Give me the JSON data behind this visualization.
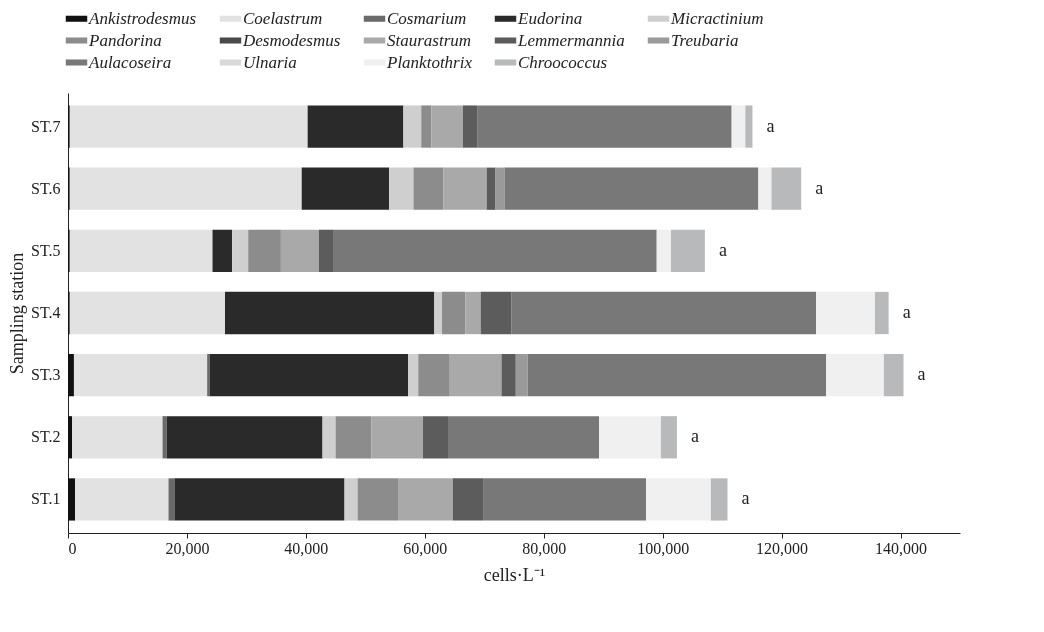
{
  "chart_data": {
    "type": "bar",
    "orientation": "horizontal",
    "stacked": true,
    "xlabel": "cells·L⁻¹",
    "ylabel": "Sampling station",
    "categories": [
      "ST.7",
      "ST.6",
      "ST.5",
      "ST.4",
      "ST.3",
      "ST.2",
      "ST.1"
    ],
    "series": [
      {
        "name": "Ankistrodesmus",
        "color": "#111111",
        "values": [
          300,
          300,
          300,
          300,
          1000,
          700,
          1200
        ]
      },
      {
        "name": "Coelastrum",
        "color": "#e2e2e2",
        "values": [
          40000,
          39000,
          24000,
          26100,
          22400,
          15200,
          15700
        ]
      },
      {
        "name": "Cosmarium",
        "color": "#6a6a6a",
        "values": [
          0,
          0,
          0,
          0,
          400,
          700,
          1000
        ]
      },
      {
        "name": "Eudorina",
        "color": "#2a2a2a",
        "values": [
          16100,
          14700,
          3300,
          35200,
          33400,
          26200,
          28600
        ]
      },
      {
        "name": "Micractinium",
        "color": "#cfcfcf",
        "values": [
          3000,
          4100,
          2700,
          1300,
          1700,
          2200,
          2200
        ]
      },
      {
        "name": "Pandorina",
        "color": "#8c8c8c",
        "values": [
          1700,
          5000,
          5500,
          3900,
          5300,
          6000,
          6800
        ]
      },
      {
        "name": "Desmodesmus",
        "color": "#4a4a4a",
        "values": [
          0,
          0,
          0,
          0,
          0,
          0,
          0
        ]
      },
      {
        "name": "Staurastrum",
        "color": "#a9a9a9",
        "values": [
          5300,
          7300,
          6400,
          2600,
          8700,
          8700,
          9200
        ]
      },
      {
        "name": "Lemmermannia",
        "color": "#5c5c5c",
        "values": [
          2400,
          1500,
          2500,
          5200,
          2400,
          4200,
          5100
        ]
      },
      {
        "name": "Treubaria",
        "color": "#9a9a9a",
        "values": [
          0,
          1500,
          0,
          0,
          2000,
          0,
          0
        ]
      },
      {
        "name": "Aulacoseira",
        "color": "#787878",
        "values": [
          42800,
          42700,
          54300,
          51200,
          50200,
          25400,
          27400
        ]
      },
      {
        "name": "Ulnaria",
        "color": "#d8d8d8",
        "values": [
          0,
          0,
          0,
          0,
          0,
          0,
          0
        ]
      },
      {
        "name": "Planktothrix",
        "color": "#f0f0f0",
        "values": [
          2300,
          2200,
          2400,
          9900,
          9700,
          10400,
          10900
        ]
      },
      {
        "name": "Chroococcus",
        "color": "#b8b9bb",
        "values": [
          1200,
          5000,
          5700,
          2300,
          3300,
          2700,
          2800
        ]
      }
    ],
    "xlim": [
      0,
      150000
    ],
    "xticks": [
      0,
      {
        "value": 20000,
        "label": "20,000"
      },
      {
        "value": 40000,
        "label": "40,000"
      },
      {
        "value": 60000,
        "label": "60,000"
      },
      {
        "value": 80000,
        "label": "80,000"
      },
      {
        "value": 100000,
        "label": "100,000"
      },
      {
        "value": 120000,
        "label": "120,000"
      },
      {
        "value": 140000,
        "label": "140,000"
      }
    ],
    "legend": "top",
    "grid": false,
    "annotations": [
      {
        "text": "a",
        "x": 115100,
        "y": "ST.7"
      },
      {
        "text": "a",
        "x": 123300,
        "y": "ST.6"
      },
      {
        "text": "a",
        "x": 107100,
        "y": "ST.5"
      },
      {
        "text": "a",
        "x": 138000,
        "y": "ST.4"
      },
      {
        "text": "a",
        "x": 140500,
        "y": "ST.3"
      },
      {
        "text": "a",
        "x": 102400,
        "y": "ST.2"
      },
      {
        "text": "a",
        "x": 110900,
        "y": "ST.1"
      }
    ]
  }
}
